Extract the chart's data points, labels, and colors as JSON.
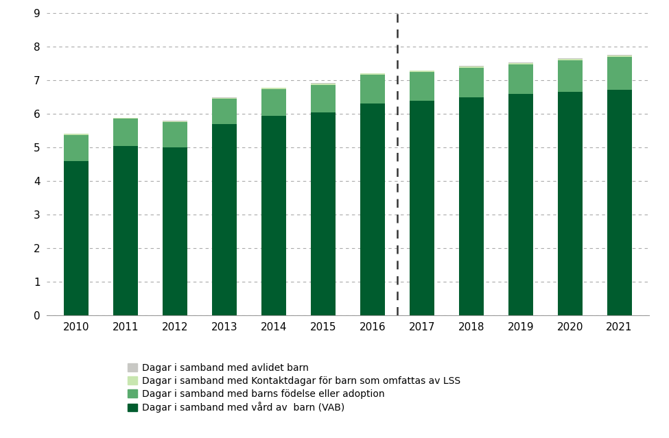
{
  "years": [
    2010,
    2011,
    2012,
    2013,
    2014,
    2015,
    2016,
    2017,
    2018,
    2019,
    2020,
    2021
  ],
  "vab": [
    4.6,
    5.05,
    5.0,
    5.7,
    5.95,
    6.05,
    6.3,
    6.4,
    6.5,
    6.6,
    6.65,
    6.72
  ],
  "fodelse": [
    0.78,
    0.8,
    0.75,
    0.75,
    0.78,
    0.82,
    0.86,
    0.84,
    0.88,
    0.88,
    0.95,
    0.98
  ],
  "lss": [
    0.03,
    0.03,
    0.03,
    0.03,
    0.04,
    0.04,
    0.04,
    0.04,
    0.04,
    0.04,
    0.04,
    0.04
  ],
  "avlidet": [
    0.01,
    0.01,
    0.01,
    0.01,
    0.01,
    0.01,
    0.01,
    0.01,
    0.01,
    0.01,
    0.01,
    0.01
  ],
  "color_vab": "#005c2e",
  "color_fodelse": "#5aab6e",
  "color_lss": "#c8e6b0",
  "color_avlidet": "#c8c8c4",
  "ylim": [
    0,
    9
  ],
  "yticks": [
    0,
    1,
    2,
    3,
    4,
    5,
    6,
    7,
    8,
    9
  ],
  "dashed_line_x": 6.5,
  "legend_labels": [
    "Dagar i samband med avlidet barn",
    "Dagar i samband med Kontaktdagar för barn som omfattas av LSS",
    "Dagar i samband med barns födelse eller adoption",
    "Dagar i samband med vård av  barn (VAB)"
  ],
  "legend_colors": [
    "#c8c8c4",
    "#c8e6b0",
    "#5aab6e",
    "#005c2e"
  ]
}
